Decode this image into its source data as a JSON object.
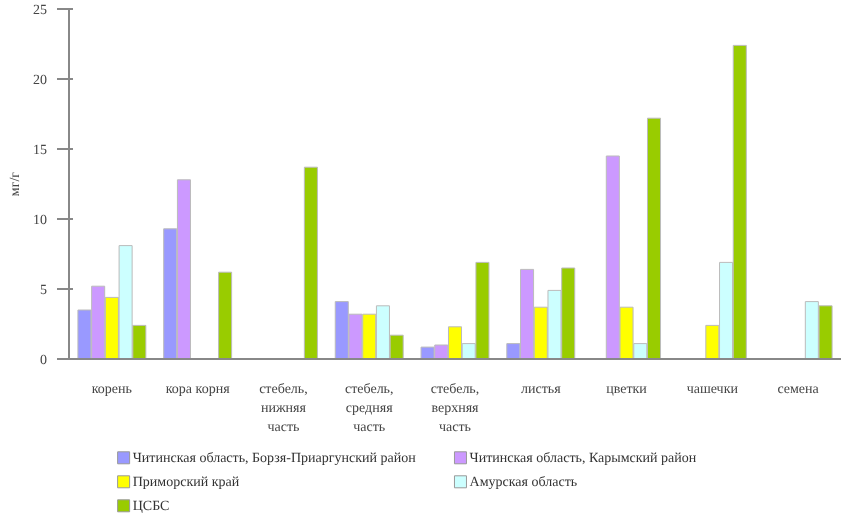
{
  "chart_data": {
    "type": "bar",
    "ylabel": "мг/г",
    "categories": [
      "корень",
      "кора корня",
      "стебель, нижняя часть",
      "стебель, средняя часть",
      "стебель, верхняя часть",
      "листья",
      "цветки",
      "чашечки",
      "семена"
    ],
    "series": [
      {
        "name": "Читинская область, Борзя-Приаргунский район",
        "color": "#9999ff",
        "values": [
          3.5,
          9.3,
          null,
          4.1,
          0.85,
          1.1,
          null,
          null,
          null
        ]
      },
      {
        "name": "Читинская область, Карымский район",
        "color": "#cc99ff",
        "values": [
          5.2,
          12.8,
          null,
          3.2,
          1.0,
          6.4,
          14.5,
          null,
          null
        ]
      },
      {
        "name": "Приморский край",
        "color": "#ffff00",
        "values": [
          4.4,
          null,
          null,
          3.2,
          2.3,
          3.7,
          3.7,
          2.4,
          null
        ]
      },
      {
        "name": "Амурская область",
        "color": "#ccffff",
        "values": [
          8.1,
          null,
          null,
          3.8,
          1.1,
          4.9,
          1.1,
          6.9,
          4.1
        ]
      },
      {
        "name": "ЦСБС",
        "color": "#99cc00",
        "values": [
          2.4,
          6.2,
          13.7,
          1.7,
          6.9,
          6.5,
          17.2,
          22.4,
          3.8
        ]
      }
    ],
    "ylim": [
      0,
      25
    ],
    "yticks": [
      0,
      5,
      10,
      15,
      20,
      25
    ],
    "grid": false,
    "legend": "bottom"
  }
}
